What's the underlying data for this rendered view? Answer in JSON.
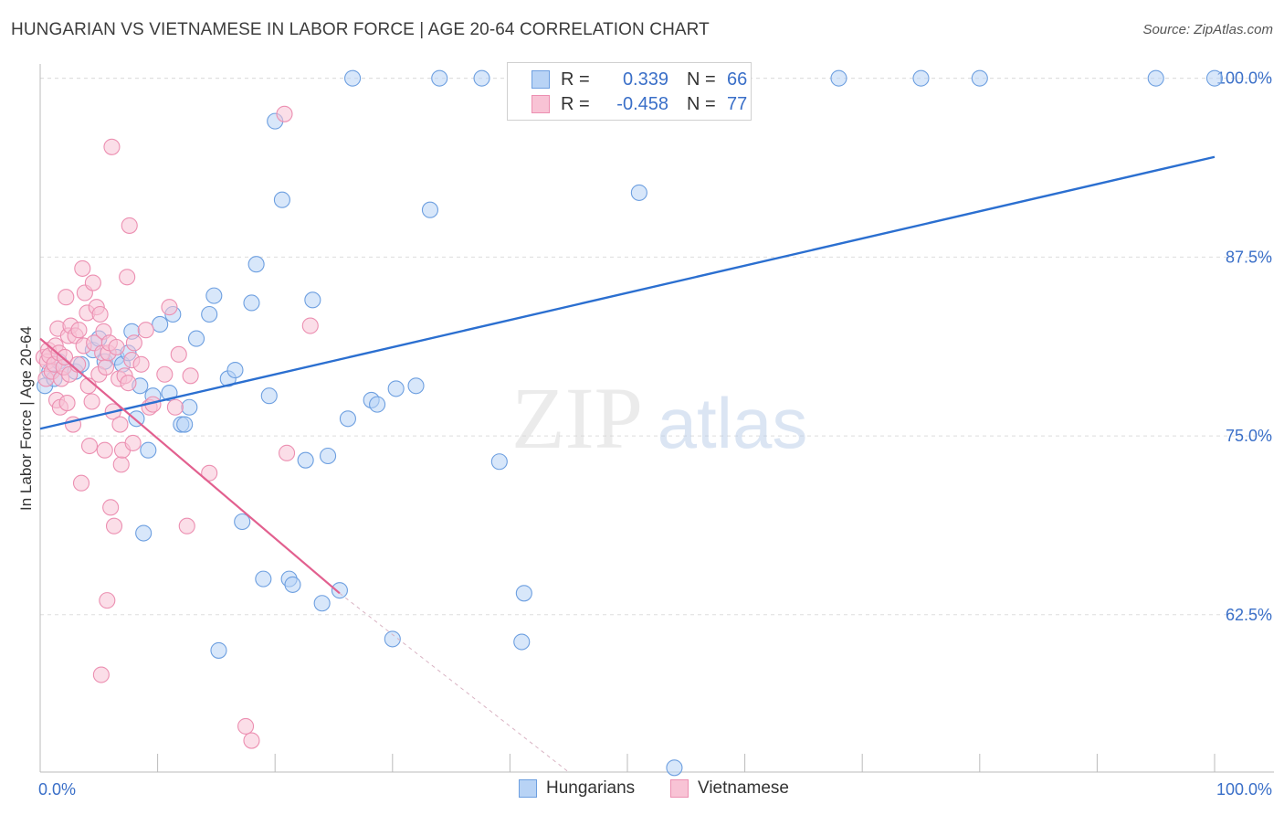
{
  "title": "HUNGARIAN VS VIETNAMESE IN LABOR FORCE | AGE 20-64 CORRELATION CHART",
  "source": "Source: ZipAtlas.com",
  "watermark": {
    "zip": "ZIP",
    "atlas": "atlas"
  },
  "legend": {
    "r_label": "R =",
    "n_label": "N =",
    "hungarians": {
      "r": "0.339",
      "n": "66"
    },
    "vietnamese": {
      "r": "-0.458",
      "n": "77"
    }
  },
  "colors": {
    "hungarians_fill": "#b8d3f5",
    "hungarians_stroke": "#6d9fe0",
    "hungarians_line": "#2b6fd0",
    "vietnamese_fill": "#f8c3d5",
    "vietnamese_stroke": "#ec8fb1",
    "vietnamese_line": "#e2608f",
    "tick_label": "#3a6fc8",
    "grid": "#dddddd"
  },
  "chart_data": {
    "type": "scatter",
    "title": "HUNGARIAN VS VIETNAMESE IN LABOR FORCE | AGE 20-64 CORRELATION CHART",
    "xlabel": "",
    "ylabel": "In Labor Force | Age 20-64",
    "xlim": [
      0,
      100
    ],
    "ylim": [
      51.5,
      101
    ],
    "x_tick_labels": [
      "0.0%",
      "100.0%"
    ],
    "y_ticks": [
      62.5,
      75.0,
      87.5,
      100.0
    ],
    "y_tick_labels": [
      "62.5%",
      "75.0%",
      "87.5%",
      "100.0%"
    ],
    "grid": true,
    "legend_position": "top-center",
    "series": [
      {
        "name": "Hungarians",
        "points": [
          [
            0.4,
            78.5
          ],
          [
            0.8,
            79.5
          ],
          [
            1.2,
            79.0
          ],
          [
            1.6,
            80.2
          ],
          [
            2.0,
            79.8
          ],
          [
            3.0,
            79.5
          ],
          [
            3.5,
            80.0
          ],
          [
            4.5,
            81.0
          ],
          [
            5.0,
            81.8
          ],
          [
            5.5,
            80.2
          ],
          [
            6.5,
            80.5
          ],
          [
            7.0,
            80.0
          ],
          [
            7.5,
            80.8
          ],
          [
            7.8,
            82.3
          ],
          [
            8.2,
            76.2
          ],
          [
            8.5,
            78.5
          ],
          [
            8.8,
            68.2
          ],
          [
            9.2,
            74.0
          ],
          [
            9.6,
            77.8
          ],
          [
            10.2,
            82.8
          ],
          [
            11.0,
            78.0
          ],
          [
            11.3,
            83.5
          ],
          [
            12.0,
            75.8
          ],
          [
            12.3,
            75.8
          ],
          [
            12.7,
            77.0
          ],
          [
            13.3,
            81.8
          ],
          [
            14.4,
            83.5
          ],
          [
            14.8,
            84.8
          ],
          [
            15.2,
            60.0
          ],
          [
            16.0,
            79.0
          ],
          [
            16.6,
            79.6
          ],
          [
            17.2,
            69.0
          ],
          [
            18.0,
            84.3
          ],
          [
            18.4,
            87.0
          ],
          [
            19.0,
            65.0
          ],
          [
            19.5,
            77.8
          ],
          [
            20.0,
            97.0
          ],
          [
            20.6,
            91.5
          ],
          [
            21.2,
            65.0
          ],
          [
            21.5,
            64.6
          ],
          [
            22.6,
            73.3
          ],
          [
            23.2,
            84.5
          ],
          [
            24.0,
            63.3
          ],
          [
            24.5,
            73.6
          ],
          [
            25.5,
            64.2
          ],
          [
            26.2,
            76.2
          ],
          [
            26.6,
            100
          ],
          [
            28.2,
            77.5
          ],
          [
            28.7,
            77.2
          ],
          [
            30.0,
            60.8
          ],
          [
            30.3,
            78.3
          ],
          [
            32.0,
            78.5
          ],
          [
            33.2,
            90.8
          ],
          [
            34.0,
            100
          ],
          [
            37.6,
            100
          ],
          [
            39.1,
            73.2
          ],
          [
            41.0,
            60.6
          ],
          [
            41.2,
            64.0
          ],
          [
            51.0,
            92.0
          ],
          [
            54.0,
            51.8
          ],
          [
            57.0,
            100
          ],
          [
            68.0,
            100
          ],
          [
            75.0,
            100
          ],
          [
            80.0,
            100
          ],
          [
            95.0,
            100
          ],
          [
            100,
            100
          ]
        ],
        "trend": {
          "x": [
            0,
            100
          ],
          "y": [
            75.5,
            94.5
          ]
        }
      },
      {
        "name": "Vietnamese",
        "points": [
          [
            0.3,
            80.5
          ],
          [
            0.5,
            79.0
          ],
          [
            0.6,
            80.2
          ],
          [
            0.7,
            81.0
          ],
          [
            0.8,
            80.6
          ],
          [
            1.0,
            79.5
          ],
          [
            1.2,
            80.0
          ],
          [
            1.3,
            81.3
          ],
          [
            1.4,
            77.5
          ],
          [
            1.5,
            82.5
          ],
          [
            1.6,
            80.8
          ],
          [
            1.7,
            77.0
          ],
          [
            1.8,
            79.0
          ],
          [
            2.0,
            79.8
          ],
          [
            2.1,
            80.5
          ],
          [
            2.2,
            84.7
          ],
          [
            2.3,
            77.3
          ],
          [
            2.4,
            82.0
          ],
          [
            2.5,
            79.3
          ],
          [
            2.6,
            82.7
          ],
          [
            2.8,
            75.8
          ],
          [
            3.0,
            82.0
          ],
          [
            3.2,
            80.0
          ],
          [
            3.3,
            82.4
          ],
          [
            3.5,
            71.7
          ],
          [
            3.6,
            86.7
          ],
          [
            3.7,
            81.3
          ],
          [
            3.8,
            85.0
          ],
          [
            4.0,
            83.6
          ],
          [
            4.1,
            78.5
          ],
          [
            4.2,
            74.3
          ],
          [
            4.4,
            77.4
          ],
          [
            4.5,
            85.7
          ],
          [
            4.6,
            81.5
          ],
          [
            4.8,
            84.0
          ],
          [
            5.0,
            79.3
          ],
          [
            5.1,
            83.5
          ],
          [
            5.2,
            58.3
          ],
          [
            5.3,
            80.8
          ],
          [
            5.4,
            82.3
          ],
          [
            5.5,
            74.0
          ],
          [
            5.6,
            79.8
          ],
          [
            5.7,
            63.5
          ],
          [
            5.8,
            80.8
          ],
          [
            5.9,
            81.5
          ],
          [
            6.0,
            70.0
          ],
          [
            6.1,
            95.2
          ],
          [
            6.2,
            76.7
          ],
          [
            6.3,
            68.7
          ],
          [
            6.5,
            81.2
          ],
          [
            6.7,
            79.0
          ],
          [
            6.8,
            75.8
          ],
          [
            6.9,
            73.0
          ],
          [
            7.0,
            74.0
          ],
          [
            7.2,
            79.2
          ],
          [
            7.4,
            86.1
          ],
          [
            7.5,
            78.7
          ],
          [
            7.6,
            89.7
          ],
          [
            7.8,
            80.3
          ],
          [
            7.9,
            74.5
          ],
          [
            8.0,
            81.5
          ],
          [
            8.6,
            80.0
          ],
          [
            9.0,
            82.4
          ],
          [
            9.3,
            77.0
          ],
          [
            9.6,
            77.2
          ],
          [
            10.6,
            79.3
          ],
          [
            11.0,
            84.0
          ],
          [
            11.5,
            77.0
          ],
          [
            11.8,
            80.7
          ],
          [
            12.5,
            68.7
          ],
          [
            12.8,
            79.2
          ],
          [
            14.4,
            72.4
          ],
          [
            17.5,
            54.7
          ],
          [
            18.0,
            53.7
          ],
          [
            21.0,
            73.8
          ],
          [
            20.8,
            97.5
          ],
          [
            23.0,
            82.7
          ]
        ],
        "trend": {
          "x": [
            0,
            25.5
          ],
          "y": [
            81.8,
            64.0
          ],
          "dashed_extension": {
            "x": [
              25.5,
              45
            ],
            "y": [
              64.0,
              51.5
            ]
          }
        }
      }
    ]
  },
  "axis": {
    "x_left_label": "0.0%",
    "x_right_label": "100.0%",
    "ylabel": "In Labor Force | Age 20-64"
  },
  "bottom_legend": {
    "hungarians": "Hungarians",
    "vietnamese": "Vietnamese"
  }
}
